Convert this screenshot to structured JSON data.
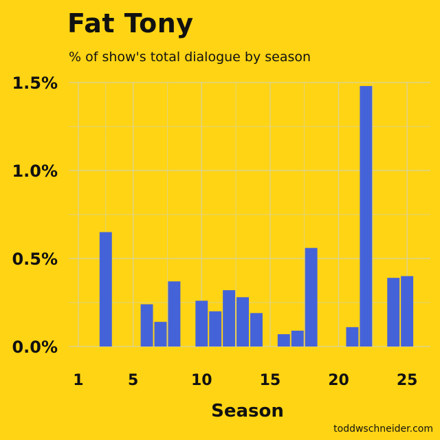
{
  "colors": {
    "background": "#FFD414",
    "bar": "#4563D9",
    "grid": "#D8D2A3"
  },
  "credit": "toddwschneider.com",
  "chart_data": {
    "type": "bar",
    "title": "Fat Tony",
    "subtitle": "% of show's total dialogue by season",
    "xlabel": "Season",
    "ylabel": "",
    "x_ticks": [
      1,
      5,
      10,
      15,
      20,
      25
    ],
    "y_ticks": [
      "0.0%",
      "0.5%",
      "1.0%",
      "1.5%"
    ],
    "y_tick_values": [
      0,
      0.5,
      1.0,
      1.5
    ],
    "xlim": [
      0.3,
      26.7
    ],
    "ylim": [
      0,
      1.5
    ],
    "grid": true,
    "categories": [
      3,
      6,
      7,
      8,
      10,
      11,
      12,
      13,
      14,
      16,
      17,
      18,
      21,
      22,
      24,
      25
    ],
    "values": [
      0.65,
      0.24,
      0.14,
      0.37,
      0.26,
      0.2,
      0.32,
      0.28,
      0.19,
      0.07,
      0.09,
      0.56,
      0.11,
      1.48,
      0.39,
      0.4
    ]
  }
}
